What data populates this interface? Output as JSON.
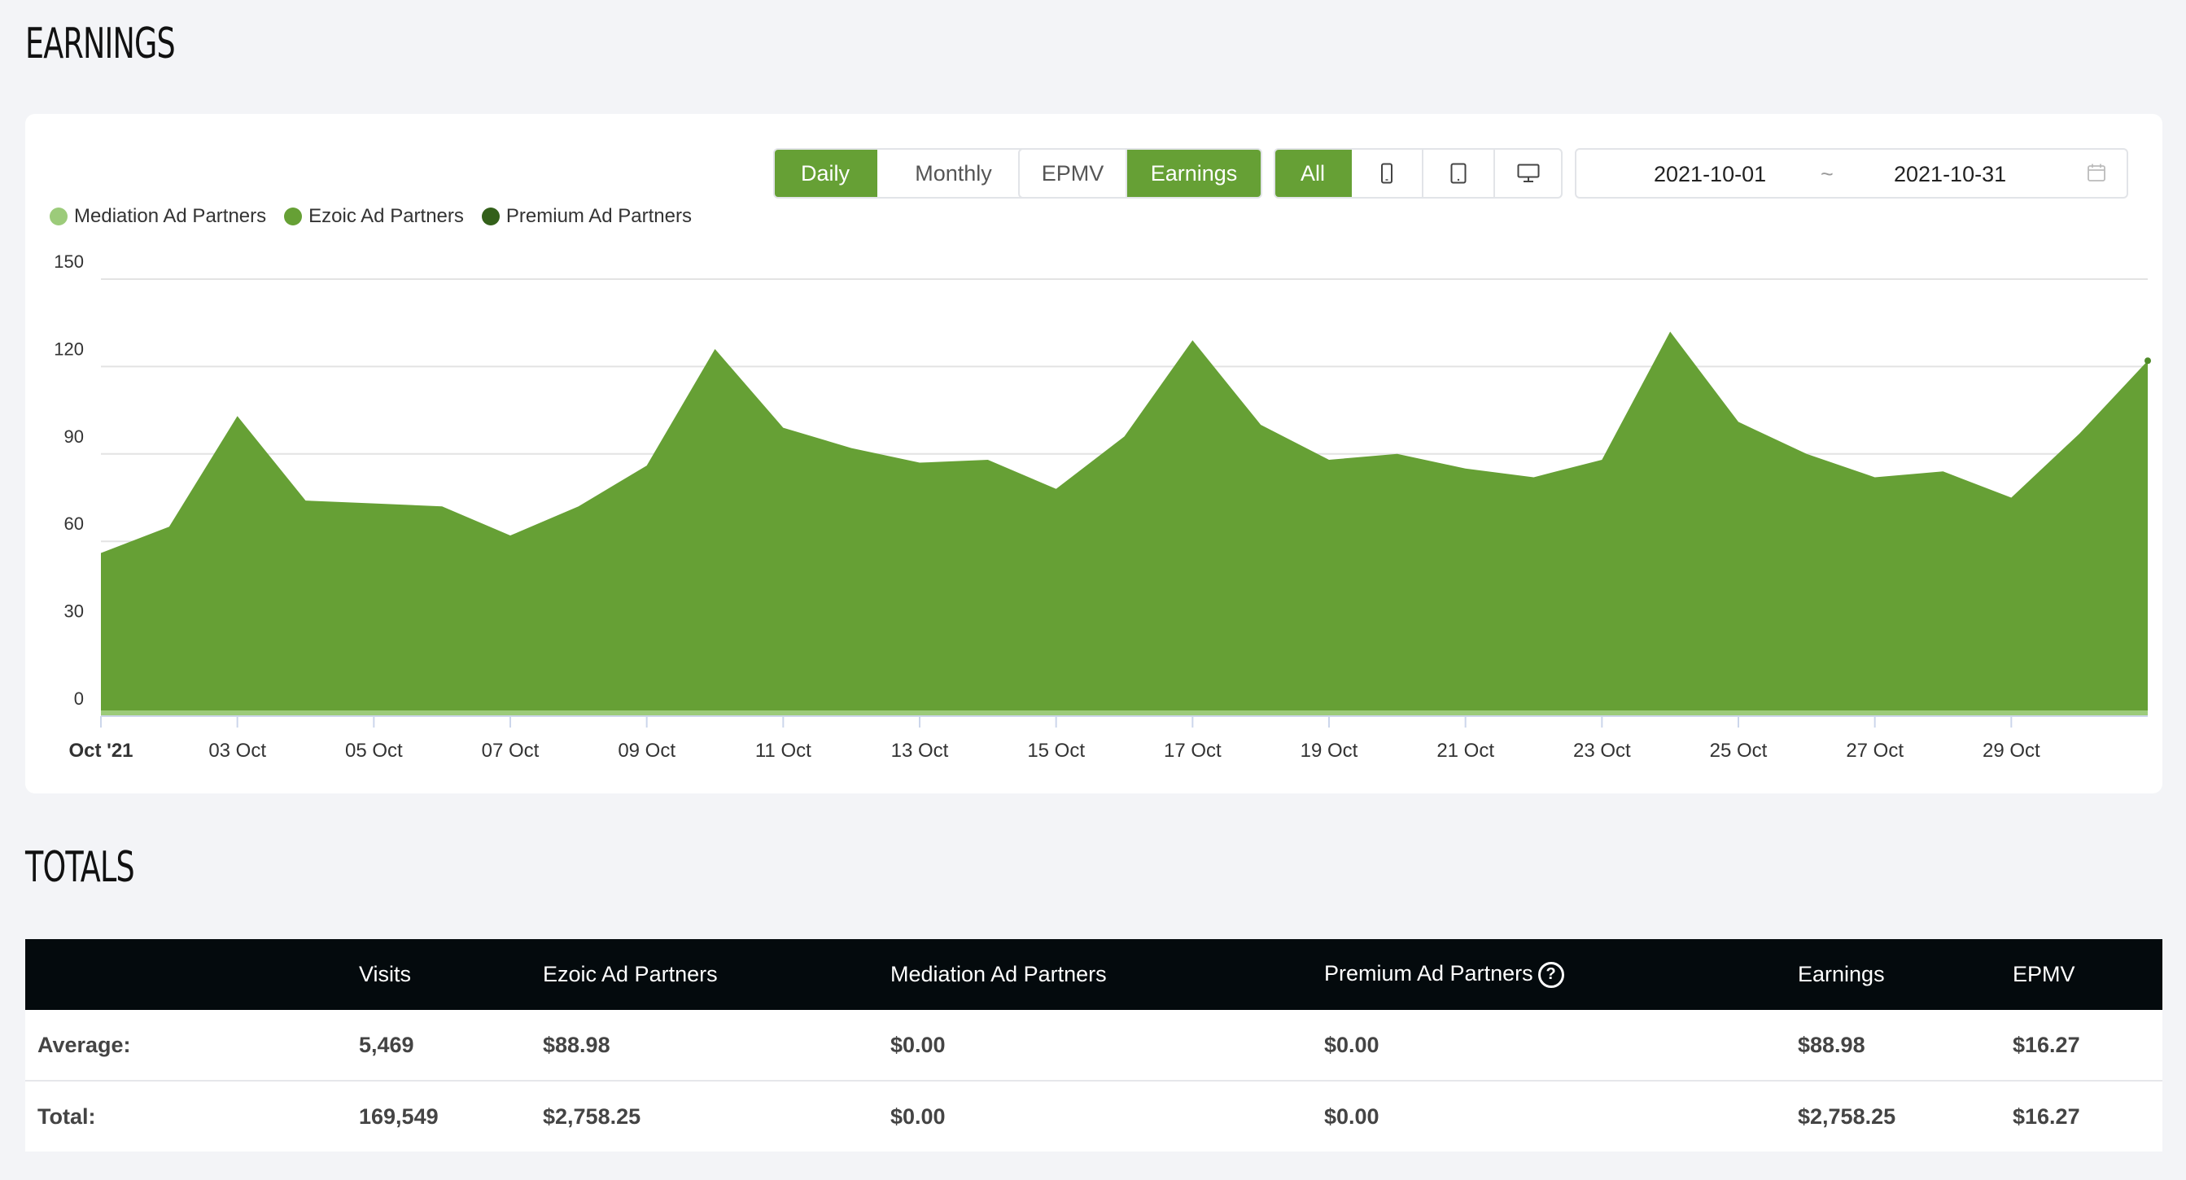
{
  "earnings_section": {
    "title": "EARNINGS",
    "toolbar": {
      "period": [
        "Daily",
        "Monthly"
      ],
      "active_period": "Daily",
      "metric": [
        "EPMV",
        "Earnings"
      ],
      "active_metric": "Earnings",
      "device_all": "All",
      "device_icons": [
        "mobile-icon",
        "tablet-icon",
        "desktop-icon"
      ],
      "date_start": "2021-10-01",
      "date_separator": "~",
      "date_end": "2021-10-31",
      "calendar_icon": "calendar-icon"
    },
    "legend": [
      {
        "label": "Mediation Ad Partners",
        "color": "#9ccb7a"
      },
      {
        "label": "Ezoic Ad Partners",
        "color": "#66a035"
      },
      {
        "label": "Premium Ad Partners",
        "color": "#33601a"
      }
    ]
  },
  "chart_data": {
    "type": "area",
    "x": [
      "Oct '21",
      "02 Oct",
      "03 Oct",
      "04 Oct",
      "05 Oct",
      "06 Oct",
      "07 Oct",
      "08 Oct",
      "09 Oct",
      "10 Oct",
      "11 Oct",
      "12 Oct",
      "13 Oct",
      "14 Oct",
      "15 Oct",
      "16 Oct",
      "17 Oct",
      "18 Oct",
      "19 Oct",
      "20 Oct",
      "21 Oct",
      "22 Oct",
      "23 Oct",
      "24 Oct",
      "25 Oct",
      "26 Oct",
      "27 Oct",
      "28 Oct",
      "29 Oct",
      "30 Oct",
      "31 Oct"
    ],
    "x_tick_labels": [
      "Oct '21",
      "03 Oct",
      "05 Oct",
      "07 Oct",
      "09 Oct",
      "11 Oct",
      "13 Oct",
      "15 Oct",
      "17 Oct",
      "19 Oct",
      "21 Oct",
      "23 Oct",
      "25 Oct",
      "27 Oct",
      "29 Oct"
    ],
    "series": [
      {
        "name": "Mediation Ad Partners",
        "values": [
          0,
          0,
          0,
          0,
          0,
          0,
          0,
          0,
          0,
          0,
          0,
          0,
          0,
          0,
          0,
          0,
          0,
          0,
          0,
          0,
          0,
          0,
          0,
          0,
          0,
          0,
          0,
          0,
          0,
          0,
          0
        ]
      },
      {
        "name": "Ezoic Ad Partners",
        "values": [
          56,
          65,
          103,
          74,
          73,
          72,
          62,
          72,
          86,
          126,
          99,
          92,
          87,
          88,
          78,
          96,
          129,
          100,
          88,
          90,
          85,
          82,
          88,
          132,
          101,
          90,
          82,
          84,
          75,
          97,
          122
        ]
      },
      {
        "name": "Premium Ad Partners",
        "values": [
          0,
          0,
          0,
          0,
          0,
          0,
          0,
          0,
          0,
          0,
          0,
          0,
          0,
          0,
          0,
          0,
          0,
          0,
          0,
          0,
          0,
          0,
          0,
          0,
          0,
          0,
          0,
          0,
          0,
          0,
          0
        ]
      }
    ],
    "y_ticks": [
      0,
      30,
      60,
      90,
      120,
      150
    ],
    "ylim": [
      0,
      150
    ],
    "grid": true,
    "legend_position": "top-left",
    "title": "",
    "xlabel": "",
    "ylabel": ""
  },
  "totals_section": {
    "title": "TOTALS",
    "columns": [
      "",
      "Visits",
      "Ezoic Ad Partners",
      "Mediation Ad Partners",
      "Premium Ad Partners",
      "Earnings",
      "EPMV"
    ],
    "rows": [
      [
        "Average:",
        "5,469",
        "$88.98",
        "$0.00",
        "$0.00",
        "$88.98",
        "$16.27"
      ],
      [
        "Total:",
        "169,549",
        "$2,758.25",
        "$0.00",
        "$0.00",
        "$2,758.25",
        "$16.27"
      ]
    ],
    "help_icon": "?"
  }
}
